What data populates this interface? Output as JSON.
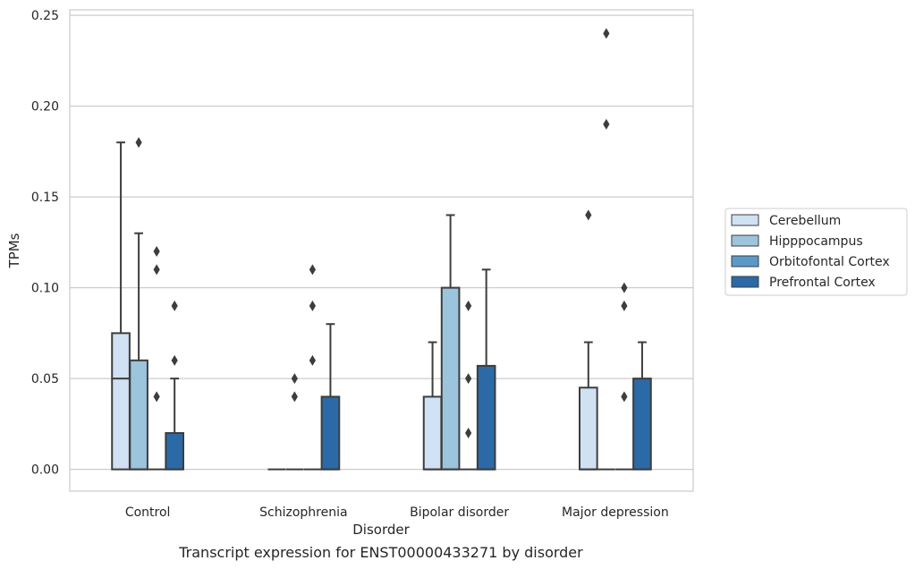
{
  "chart_data": {
    "type": "box",
    "xlabel": "Disorder",
    "ylabel": "TPMs",
    "caption": "Transcript expression for ENST00000433271 by disorder",
    "ylim": [
      -0.012,
      0.253
    ],
    "yticks": [
      "0.00",
      "0.05",
      "0.10",
      "0.15",
      "0.20",
      "0.25"
    ],
    "ytick_values": [
      0,
      0.05,
      0.1,
      0.15,
      0.2,
      0.25
    ],
    "grid": "horizontal",
    "legend_position": "right",
    "categories": [
      "Control",
      "Schizophrenia",
      "Bipolar disorder",
      "Major depression"
    ],
    "series": [
      {
        "name": "Cerebellum",
        "color": "#cfe1f2",
        "boxes": [
          {
            "q1": 0,
            "median": 0.05,
            "q3": 0.075,
            "whisker_low": 0,
            "whisker_high": 0.18,
            "outliers": []
          },
          {
            "q1": 0,
            "median": 0,
            "q3": 0,
            "whisker_low": 0,
            "whisker_high": 0,
            "outliers": []
          },
          {
            "q1": 0,
            "median": 0,
            "q3": 0.04,
            "whisker_low": 0,
            "whisker_high": 0.07,
            "outliers": []
          },
          {
            "q1": 0,
            "median": 0,
            "q3": 0.045,
            "whisker_low": 0,
            "whisker_high": 0.07,
            "outliers": [
              0.14
            ]
          }
        ]
      },
      {
        "name": "Hipppocampus",
        "color": "#9cc4dc",
        "boxes": [
          {
            "q1": 0,
            "median": 0,
            "q3": 0.06,
            "whisker_low": 0,
            "whisker_high": 0.13,
            "outliers": [
              0.18
            ]
          },
          {
            "q1": 0,
            "median": 0,
            "q3": 0,
            "whisker_low": 0,
            "whisker_high": 0,
            "outliers": [
              0.04,
              0.05
            ]
          },
          {
            "q1": 0,
            "median": 0,
            "q3": 0.1,
            "whisker_low": 0,
            "whisker_high": 0.14,
            "outliers": []
          },
          {
            "q1": 0,
            "median": 0,
            "q3": 0,
            "whisker_low": 0,
            "whisker_high": 0,
            "outliers": [
              0.19,
              0.24
            ]
          }
        ]
      },
      {
        "name": "Orbitofontal Cortex",
        "color": "#5a9ac8",
        "boxes": [
          {
            "q1": 0,
            "median": 0,
            "q3": 0,
            "whisker_low": 0,
            "whisker_high": 0,
            "outliers": [
              0.04,
              0.11,
              0.12
            ]
          },
          {
            "q1": 0,
            "median": 0,
            "q3": 0,
            "whisker_low": 0,
            "whisker_high": 0,
            "outliers": [
              0.06,
              0.09,
              0.11
            ]
          },
          {
            "q1": 0,
            "median": 0,
            "q3": 0,
            "whisker_low": 0,
            "whisker_high": 0,
            "outliers": [
              0.02,
              0.05,
              0.09
            ]
          },
          {
            "q1": 0,
            "median": 0,
            "q3": 0,
            "whisker_low": 0,
            "whisker_high": 0,
            "outliers": [
              0.04,
              0.09,
              0.1
            ]
          }
        ]
      },
      {
        "name": "Prefrontal Cortex",
        "color": "#2b6aa6",
        "boxes": [
          {
            "q1": 0,
            "median": 0,
            "q3": 0.02,
            "whisker_low": 0,
            "whisker_high": 0.05,
            "outliers": [
              0.06,
              0.09
            ]
          },
          {
            "q1": 0,
            "median": 0,
            "q3": 0.04,
            "whisker_low": 0,
            "whisker_high": 0.08,
            "outliers": []
          },
          {
            "q1": 0,
            "median": 0,
            "q3": 0.057,
            "whisker_low": 0,
            "whisker_high": 0.11,
            "outliers": []
          },
          {
            "q1": 0,
            "median": 0,
            "q3": 0.05,
            "whisker_low": 0,
            "whisker_high": 0.07,
            "outliers": []
          }
        ]
      }
    ]
  }
}
